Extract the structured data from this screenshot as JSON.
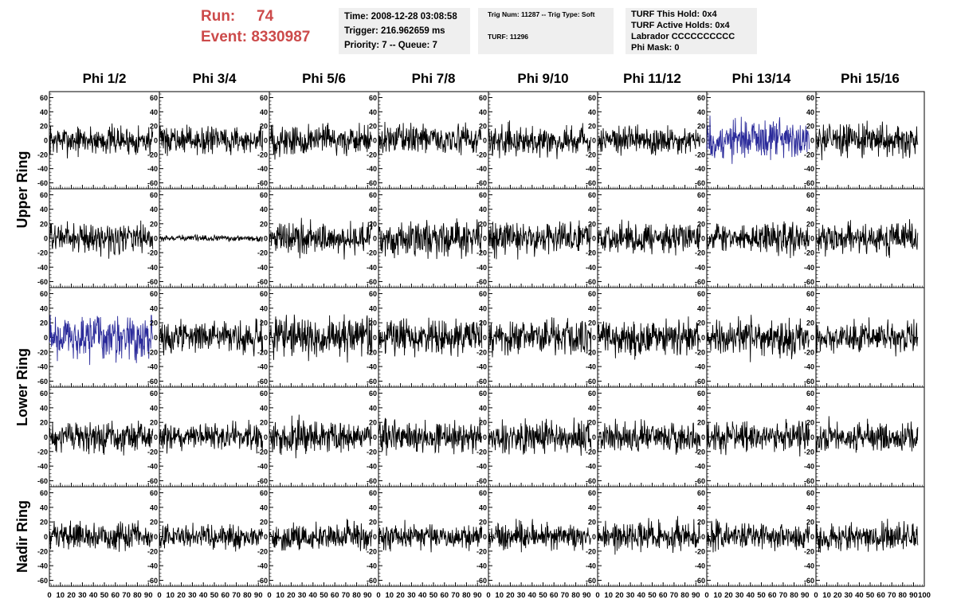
{
  "header": {
    "run_label": "Run:",
    "run_value": "74",
    "event_label": "Event:",
    "event_value": "8330987",
    "time_line": "Time: 2008-12-28 03:08:58",
    "trigger_line": "Trigger: 216.962659 ms",
    "priority_line": "Priority: 7 -- Queue: 7",
    "trig_line": "Trig Num: 11287 -- Trig Type: Soft",
    "turf_line": "TURF: 11296",
    "turf_this_hold": "TURF This Hold: 0x4",
    "turf_active_holds": "TURF Active Holds: 0x4",
    "labrador": "Labrador CCCCCCCCCC",
    "phi_mask": "Phi Mask: 0"
  },
  "colors": {
    "run_text": "#cc4a4a",
    "info_panel": "#efefef",
    "trace": "#000000",
    "highlight_trace": "#2a2a9a"
  },
  "chart_data": {
    "type": "line",
    "layout": "grid 5 rows x 8 columns of waveform panels",
    "column_labels": [
      "Phi 1/2",
      "Phi 3/4",
      "Phi 5/6",
      "Phi 7/8",
      "Phi 9/10",
      "Phi 11/12",
      "Phi 13/14",
      "Phi 15/16"
    ],
    "row_groups": [
      {
        "label": "Upper Ring",
        "rows": [
          0,
          1
        ]
      },
      {
        "label": "Lower Ring",
        "rows": [
          2,
          3
        ]
      },
      {
        "label": "Nadir Ring",
        "rows": [
          4
        ]
      }
    ],
    "xlim": [
      0,
      100
    ],
    "ylim": [
      -65,
      65
    ],
    "x_ticks": [
      0,
      10,
      20,
      30,
      40,
      50,
      60,
      70,
      80,
      90,
      100
    ],
    "x_tick_labels": [
      "0",
      "10",
      "20",
      "30",
      "40",
      "50",
      "60",
      "70",
      "80",
      "90",
      "100"
    ],
    "y_ticks": [
      -60,
      -40,
      -20,
      0,
      20,
      40,
      60
    ],
    "y_tick_labels": [
      "-60",
      "-40",
      "-20",
      "0",
      "20",
      "40",
      "60"
    ],
    "waveform_x_range": [
      0,
      94
    ],
    "samples_per_trace": 260,
    "amplitude_rms": [
      [
        10,
        9,
        11,
        10,
        10,
        10,
        14,
        11
      ],
      [
        10,
        2,
        11,
        12,
        11,
        10,
        10,
        10
      ],
      [
        15,
        10,
        13,
        12,
        12,
        12,
        12,
        10
      ],
      [
        10,
        9,
        11,
        11,
        11,
        10,
        10,
        10
      ],
      [
        9,
        8,
        9,
        9,
        9,
        10,
        9,
        9
      ]
    ],
    "highlighted_panels": [
      [
        0,
        6
      ],
      [
        2,
        0
      ]
    ]
  }
}
